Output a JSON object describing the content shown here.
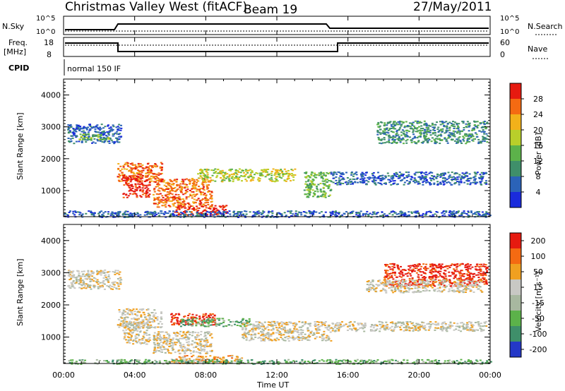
{
  "header": {
    "station": "Christmas Valley West (fitACF)",
    "beam": "Beam 19",
    "date": "27/May/2011"
  },
  "top_panels": {
    "nsky_label": "N.Sky",
    "nsearch_label": "N.Search",
    "nsky_ticks": [
      "10^5",
      "10^0"
    ],
    "nsearch_ticks": [
      "10^5",
      "10^0"
    ],
    "freq_label": "Freq.",
    "freq_unit": "[MHz]",
    "freq_ticks": [
      "18",
      "8"
    ],
    "nave_label": "Nave",
    "nave_ticks": [
      "60",
      "0"
    ],
    "cpid_label": "CPID",
    "cpid_value": "normal 150 IF"
  },
  "chart_data": [
    {
      "type": "heatmap",
      "name": "power",
      "ylabel": "Slant Range [km]",
      "xlabel": "Time UT",
      "xlim": [
        0,
        24
      ],
      "ylim": [
        180,
        4500
      ],
      "yticks": [
        "1000",
        "2000",
        "3000",
        "4000"
      ],
      "xticks": [
        "00:00",
        "04:00",
        "08:00",
        "12:00",
        "16:00",
        "20:00",
        "00:00"
      ],
      "colorbar": {
        "label": "Power [dB]",
        "ticks": [
          "4",
          "8",
          "12",
          "16",
          "20",
          "24",
          "28"
        ],
        "colors": [
          "#1a2bdc",
          "#2b63b8",
          "#3f8f6a",
          "#5cb24a",
          "#b9cf2a",
          "#f2b11a",
          "#f46a12",
          "#e61a10"
        ]
      },
      "regions": [
        {
          "t0": 0.2,
          "t1": 3.2,
          "r0": 2500,
          "r1": 3100,
          "level": 1
        },
        {
          "t0": 0.8,
          "t1": 2.6,
          "r0": 2600,
          "r1": 2800,
          "level": 3
        },
        {
          "t0": 3.0,
          "t1": 5.5,
          "r0": 1300,
          "r1": 1900,
          "level": 6
        },
        {
          "t0": 3.3,
          "t1": 4.8,
          "r0": 800,
          "r1": 1500,
          "level": 7
        },
        {
          "t0": 5.0,
          "t1": 8.3,
          "r0": 500,
          "r1": 1400,
          "level": 6
        },
        {
          "t0": 6.2,
          "t1": 9.2,
          "r0": 250,
          "r1": 550,
          "level": 7
        },
        {
          "t0": 7.5,
          "t1": 13.0,
          "r0": 1300,
          "r1": 1700,
          "level": 4
        },
        {
          "t0": 13.5,
          "t1": 15.0,
          "r0": 800,
          "r1": 1600,
          "level": 3
        },
        {
          "t0": 15.0,
          "t1": 23.8,
          "r0": 1200,
          "r1": 1600,
          "level": 1
        },
        {
          "t0": 17.5,
          "t1": 23.8,
          "r0": 2500,
          "r1": 3200,
          "level": 2
        },
        {
          "t0": 0,
          "t1": 24,
          "r0": 180,
          "r1": 380,
          "level": 1
        }
      ]
    },
    {
      "type": "heatmap",
      "name": "velocity",
      "ylabel": "Slant Range [km]",
      "xlabel": "Time UT",
      "xlim": [
        0,
        24
      ],
      "ylim": [
        180,
        4500
      ],
      "yticks": [
        "1000",
        "2000",
        "3000",
        "4000"
      ],
      "xticks": [
        "00:00",
        "04:00",
        "08:00",
        "12:00",
        "16:00",
        "20:00",
        "00:00"
      ],
      "colorbar": {
        "label": "Velocity [m s⁻¹]",
        "ticks": [
          "200",
          "100",
          "50",
          "15",
          "-15",
          "-50",
          "-100",
          "-200"
        ],
        "colors": [
          "#2438c8",
          "#3f8f6a",
          "#5cb24a",
          "#a8b8a0",
          "#c8c8c4",
          "#f0a020",
          "#f46a12",
          "#e61a10"
        ]
      },
      "regions": [
        {
          "t0": 0.2,
          "t1": 3.2,
          "r0": 2500,
          "r1": 3100,
          "level": 4
        },
        {
          "t0": 3.0,
          "t1": 5.5,
          "r0": 1300,
          "r1": 1900,
          "level": 4
        },
        {
          "t0": 3.3,
          "t1": 4.8,
          "r0": 800,
          "r1": 1500,
          "level": 4
        },
        {
          "t0": 6.0,
          "t1": 8.5,
          "r0": 1400,
          "r1": 1750,
          "level": 7
        },
        {
          "t0": 6.5,
          "t1": 10.5,
          "r0": 1350,
          "r1": 1600,
          "level": 2
        },
        {
          "t0": 5.0,
          "t1": 8.3,
          "r0": 500,
          "r1": 1200,
          "level": 4
        },
        {
          "t0": 6.0,
          "t1": 10.0,
          "r0": 200,
          "r1": 450,
          "level": 5
        },
        {
          "t0": 10.0,
          "t1": 15.0,
          "r0": 900,
          "r1": 1500,
          "level": 4
        },
        {
          "t0": 15.0,
          "t1": 23.8,
          "r0": 1200,
          "r1": 1500,
          "level": 4
        },
        {
          "t0": 18.0,
          "t1": 23.8,
          "r0": 2600,
          "r1": 3300,
          "level": 7
        },
        {
          "t0": 17.0,
          "t1": 23.5,
          "r0": 2400,
          "r1": 2800,
          "level": 4
        },
        {
          "t0": 0,
          "t1": 24,
          "r0": 180,
          "r1": 320,
          "level": 2
        }
      ]
    }
  ]
}
